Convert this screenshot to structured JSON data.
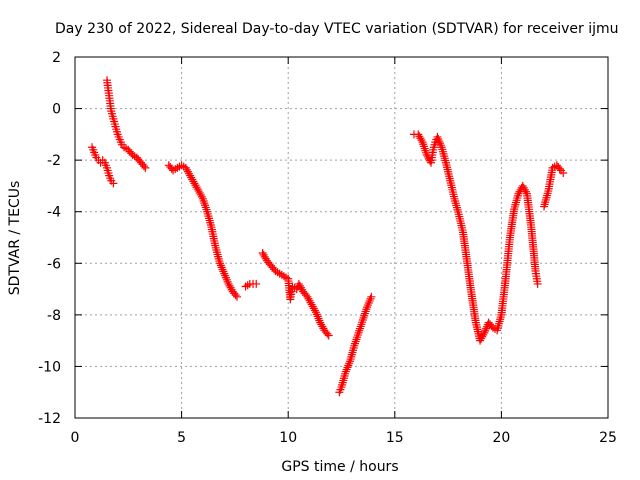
{
  "chart_data": {
    "type": "scatter",
    "title": "Day 230 of 2022, Sidereal Day-to-day VTEC variation (SDTVAR) for receiver ijmu",
    "xlabel": "GPS time / hours",
    "ylabel": "SDTVAR / TECUs",
    "xlim": [
      0,
      25
    ],
    "ylim": [
      -12,
      2
    ],
    "xticks": [
      0,
      5,
      10,
      15,
      20,
      25
    ],
    "yticks": [
      -12,
      -10,
      -8,
      -6,
      -4,
      -2,
      0,
      2
    ],
    "grid": true,
    "marker": "+",
    "color": "#ff0000",
    "segments": [
      [
        [
          0.8,
          -1.5
        ],
        [
          0.9,
          -1.7
        ],
        [
          1.0,
          -1.9
        ],
        [
          1.1,
          -2.0
        ],
        [
          1.2,
          -2.1
        ],
        [
          1.3,
          -2.0
        ],
        [
          1.4,
          -2.1
        ],
        [
          1.5,
          -2.3
        ],
        [
          1.6,
          -2.6
        ],
        [
          1.7,
          -2.8
        ],
        [
          1.8,
          -2.9
        ]
      ],
      [
        [
          1.5,
          1.1
        ],
        [
          1.55,
          0.8
        ],
        [
          1.6,
          0.5
        ],
        [
          1.65,
          0.2
        ],
        [
          1.7,
          -0.1
        ],
        [
          1.8,
          -0.4
        ],
        [
          1.9,
          -0.7
        ],
        [
          2.0,
          -1.0
        ],
        [
          2.1,
          -1.2
        ],
        [
          2.2,
          -1.4
        ],
        [
          2.3,
          -1.5
        ],
        [
          2.5,
          -1.6
        ],
        [
          2.7,
          -1.8
        ],
        [
          2.9,
          -1.9
        ],
        [
          3.1,
          -2.1
        ],
        [
          3.3,
          -2.3
        ]
      ],
      [
        [
          4.4,
          -2.2
        ],
        [
          4.6,
          -2.4
        ],
        [
          4.8,
          -2.3
        ],
        [
          5.0,
          -2.2
        ],
        [
          5.2,
          -2.3
        ],
        [
          5.4,
          -2.6
        ],
        [
          5.6,
          -2.9
        ],
        [
          5.8,
          -3.2
        ],
        [
          6.0,
          -3.5
        ],
        [
          6.2,
          -4.0
        ],
        [
          6.4,
          -4.6
        ],
        [
          6.6,
          -5.4
        ],
        [
          6.8,
          -6.0
        ],
        [
          7.0,
          -6.4
        ],
        [
          7.2,
          -6.8
        ],
        [
          7.4,
          -7.1
        ],
        [
          7.6,
          -7.3
        ]
      ],
      [
        [
          8.0,
          -6.9
        ],
        [
          8.2,
          -6.8
        ],
        [
          8.5,
          -6.8
        ]
      ],
      [
        [
          8.8,
          -5.6
        ],
        [
          9.0,
          -5.9
        ],
        [
          9.2,
          -6.1
        ],
        [
          9.4,
          -6.3
        ],
        [
          9.6,
          -6.4
        ],
        [
          9.8,
          -6.5
        ],
        [
          10.0,
          -6.6
        ],
        [
          10.1,
          -7.4
        ],
        [
          10.2,
          -6.9
        ],
        [
          10.4,
          -7.0
        ],
        [
          10.5,
          -6.8
        ],
        [
          10.7,
          -7.1
        ],
        [
          10.9,
          -7.3
        ],
        [
          11.1,
          -7.6
        ],
        [
          11.3,
          -7.9
        ],
        [
          11.5,
          -8.3
        ],
        [
          11.7,
          -8.6
        ],
        [
          11.9,
          -8.8
        ]
      ],
      [
        [
          12.4,
          -11.0
        ],
        [
          12.5,
          -10.8
        ],
        [
          12.7,
          -10.2
        ],
        [
          12.9,
          -9.8
        ],
        [
          13.1,
          -9.2
        ],
        [
          13.3,
          -8.7
        ],
        [
          13.5,
          -8.2
        ],
        [
          13.7,
          -7.7
        ],
        [
          13.9,
          -7.3
        ]
      ],
      [
        [
          15.9,
          -1.0
        ],
        [
          16.1,
          -1.0
        ],
        [
          16.3,
          -1.3
        ],
        [
          16.5,
          -1.8
        ],
        [
          16.7,
          -2.1
        ],
        [
          16.8,
          -1.6
        ],
        [
          16.9,
          -1.3
        ],
        [
          17.0,
          -1.1
        ],
        [
          17.2,
          -1.5
        ],
        [
          17.4,
          -2.1
        ],
        [
          17.6,
          -2.8
        ],
        [
          17.8,
          -3.5
        ],
        [
          18.0,
          -4.1
        ],
        [
          18.2,
          -4.8
        ],
        [
          18.4,
          -6.0
        ],
        [
          18.6,
          -7.2
        ],
        [
          18.8,
          -8.3
        ],
        [
          19.0,
          -9.0
        ],
        [
          19.2,
          -8.7
        ],
        [
          19.4,
          -8.3
        ],
        [
          19.6,
          -8.5
        ],
        [
          19.8,
          -8.6
        ],
        [
          20.0,
          -8.0
        ],
        [
          20.2,
          -6.6
        ],
        [
          20.4,
          -5.0
        ],
        [
          20.6,
          -3.9
        ],
        [
          20.8,
          -3.3
        ],
        [
          21.0,
          -3.0
        ],
        [
          21.2,
          -3.3
        ],
        [
          21.4,
          -4.6
        ],
        [
          21.6,
          -6.3
        ],
        [
          21.7,
          -6.8
        ]
      ],
      [
        [
          22.0,
          -3.8
        ],
        [
          22.2,
          -3.2
        ],
        [
          22.4,
          -2.3
        ],
        [
          22.6,
          -2.2
        ],
        [
          22.8,
          -2.4
        ],
        [
          22.9,
          -2.5
        ]
      ]
    ]
  }
}
